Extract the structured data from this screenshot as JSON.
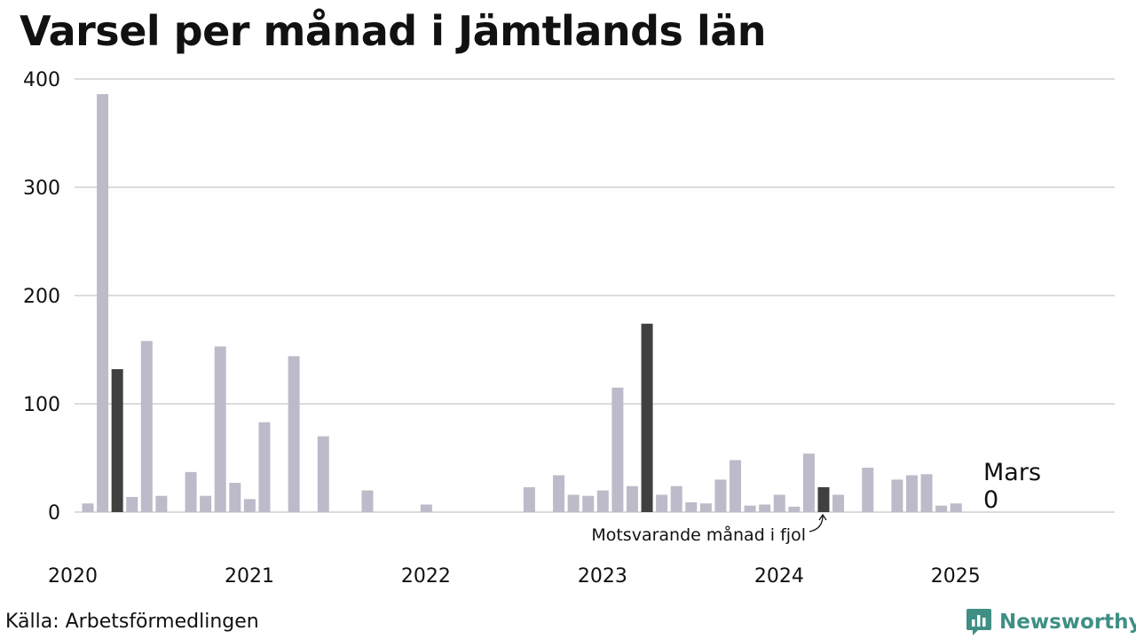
{
  "chart_data": {
    "type": "bar",
    "title": "Varsel per månad i Jämtlands län",
    "source": "Källa: Arbetsförmedlingen",
    "brand": "Newsworthy",
    "y_ticks": [
      0,
      100,
      200,
      300,
      400
    ],
    "ylim": [
      0,
      400
    ],
    "x_ticks": [
      "2020",
      "2021",
      "2022",
      "2023",
      "2024",
      "2025"
    ],
    "x_start": "2020-01",
    "x_end": "2025-12",
    "colors": {
      "bar": "#bdbbc9",
      "highlight": "#404040",
      "grid": "#dcdcdc",
      "brand": "#3f8f84"
    },
    "months": [
      "2020-01",
      "2020-02",
      "2020-03",
      "2020-04",
      "2020-05",
      "2020-06",
      "2020-07",
      "2020-08",
      "2020-09",
      "2020-10",
      "2020-11",
      "2020-12",
      "2021-01",
      "2021-02",
      "2021-03",
      "2021-04",
      "2021-05",
      "2021-06",
      "2021-07",
      "2021-08",
      "2021-09",
      "2021-10",
      "2021-11",
      "2021-12",
      "2022-01",
      "2022-02",
      "2022-03",
      "2022-04",
      "2022-05",
      "2022-06",
      "2022-07",
      "2022-08",
      "2022-09",
      "2022-10",
      "2022-11",
      "2022-12",
      "2023-01",
      "2023-02",
      "2023-03",
      "2023-04",
      "2023-05",
      "2023-06",
      "2023-07",
      "2023-08",
      "2023-09",
      "2023-10",
      "2023-11",
      "2023-12",
      "2024-01",
      "2024-02",
      "2024-03",
      "2024-04",
      "2024-05",
      "2024-06",
      "2024-07",
      "2024-08",
      "2024-09",
      "2024-10",
      "2024-11",
      "2024-12",
      "2025-01",
      "2025-02",
      "2025-03"
    ],
    "values": [
      8,
      386,
      132,
      14,
      158,
      15,
      0,
      37,
      15,
      153,
      27,
      12,
      83,
      0,
      144,
      0,
      70,
      0,
      0,
      20,
      0,
      0,
      0,
      7,
      0,
      0,
      0,
      0,
      0,
      0,
      23,
      0,
      34,
      16,
      15,
      20,
      115,
      24,
      174,
      16,
      24,
      9,
      8,
      30,
      48,
      6,
      7,
      16,
      5,
      54,
      23,
      16,
      0,
      41,
      0,
      30,
      34,
      35,
      6,
      8,
      0,
      0,
      0
    ],
    "highlighted": [
      "2020-03",
      "2023-03",
      "2024-03"
    ],
    "annotation": {
      "text": "Motsvarande månad i fjol",
      "month": "2024-03"
    },
    "last_label": {
      "month_name": "Mars",
      "value": "0"
    }
  }
}
